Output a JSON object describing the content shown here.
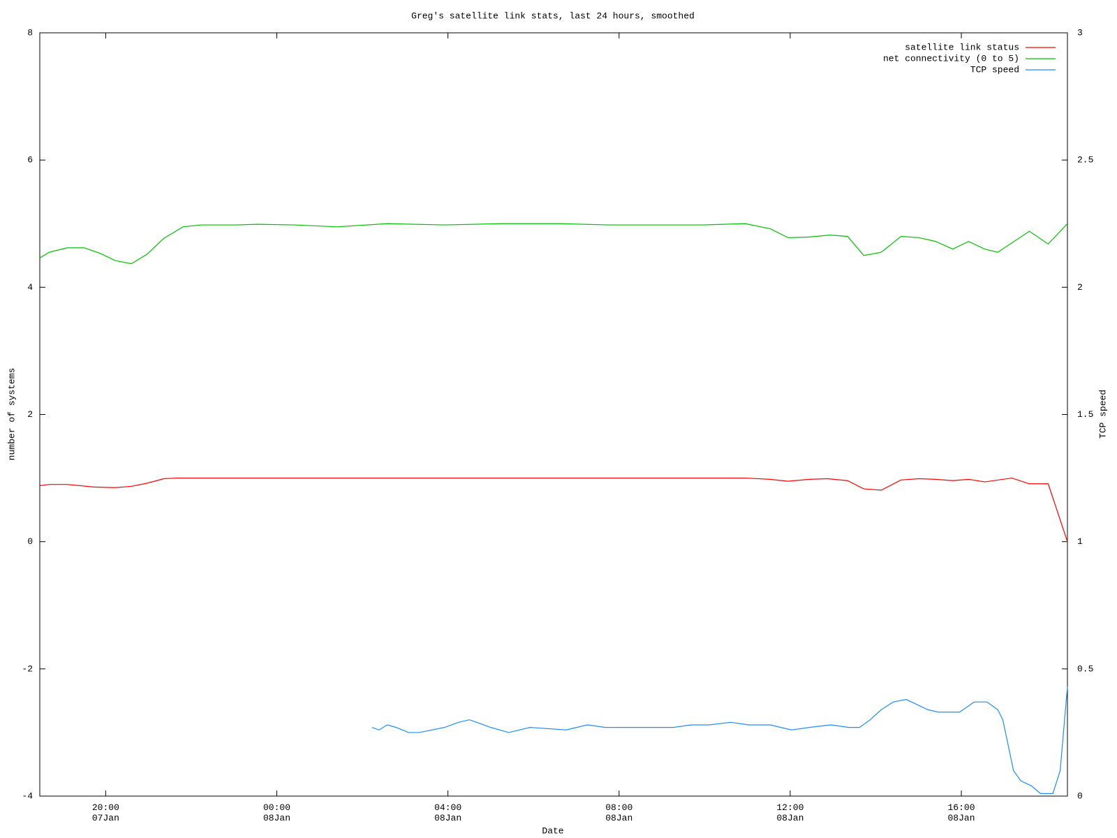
{
  "chart_data": {
    "type": "line",
    "title": "Greg's satellite link stats, last 24 hours, smoothed",
    "xlabel": "Date",
    "ylabel": "number of systems",
    "y2label": "TCP speed",
    "legend": "top-right",
    "xlim": [
      -5.54,
      18.48
    ],
    "xticks": [
      {
        "value": -4,
        "label": "20:00\n07Jan"
      },
      {
        "value": 0,
        "label": "00:00\n08Jan"
      },
      {
        "value": 4,
        "label": "04:00\n08Jan"
      },
      {
        "value": 8,
        "label": "08:00\n08Jan"
      },
      {
        "value": 12,
        "label": "12:00\n08Jan"
      },
      {
        "value": 16,
        "label": "16:00\n08Jan"
      }
    ],
    "ylim": [
      -4,
      8
    ],
    "yticks": [
      -4,
      -2,
      0,
      2,
      4,
      6,
      8
    ],
    "y2lim": [
      0,
      3
    ],
    "y2ticks": [
      0,
      0.5,
      1,
      1.5,
      2,
      2.5,
      3
    ],
    "series": [
      {
        "name": "satellite link status",
        "color": "#ff0000",
        "x": [
          -5.54,
          -5.32,
          -4.9,
          -4.28,
          -3.78,
          -3.4,
          -3.03,
          -2.64,
          -2.36,
          10.95,
          11.53,
          11.95,
          12.45,
          12.87,
          13.34,
          13.72,
          14.13,
          14.59,
          15.01,
          15.4,
          15.8,
          16.17,
          16.55,
          17.18,
          17.59,
          18.03,
          18.48
        ],
        "values": [
          0.88,
          0.9,
          0.9,
          0.86,
          0.85,
          0.87,
          0.92,
          0.99,
          1.0,
          1.0,
          0.98,
          0.95,
          0.98,
          0.99,
          0.96,
          0.83,
          0.81,
          0.97,
          0.99,
          0.98,
          0.96,
          0.98,
          0.94,
          1.0,
          0.91,
          0.91,
          0.0
        ]
      },
      {
        "name": "net connectivity (0 to 5)",
        "color": "#00c000",
        "x": [
          -5.54,
          -5.32,
          -4.9,
          -4.5,
          -4.12,
          -3.78,
          -3.4,
          -3.03,
          -2.64,
          -2.19,
          -1.77,
          -0.94,
          -0.44,
          0.4,
          1.41,
          2.58,
          3.92,
          5.26,
          6.59,
          7.77,
          9.94,
          10.95,
          11.53,
          11.95,
          12.45,
          12.92,
          13.34,
          13.72,
          14.13,
          14.59,
          15.01,
          15.4,
          15.8,
          16.17,
          16.55,
          16.85,
          17.59,
          18.03,
          18.48
        ],
        "values": [
          4.46,
          4.55,
          4.62,
          4.62,
          4.53,
          4.42,
          4.37,
          4.52,
          4.77,
          4.95,
          4.98,
          4.98,
          4.99,
          4.98,
          4.95,
          5.0,
          4.98,
          5.0,
          5.0,
          4.98,
          4.98,
          5.0,
          4.92,
          4.78,
          4.79,
          4.82,
          4.8,
          4.5,
          4.55,
          4.8,
          4.78,
          4.72,
          4.6,
          4.72,
          4.6,
          4.55,
          4.88,
          4.68,
          5.0
        ]
      },
      {
        "name": "TCP speed",
        "color": "#1e8cff",
        "axis": "y2",
        "x": [
          2.23,
          2.39,
          2.58,
          2.79,
          3.08,
          3.33,
          3.92,
          4.25,
          4.5,
          4.67,
          5.0,
          5.42,
          5.92,
          6.76,
          7.26,
          7.68,
          8.6,
          9.27,
          9.69,
          10.11,
          10.61,
          11.03,
          11.53,
          12.03,
          12.45,
          12.95,
          13.37,
          13.62,
          13.87,
          14.13,
          14.41,
          14.71,
          14.96,
          15.21,
          15.46,
          15.8,
          15.96,
          16.13,
          16.3,
          16.6,
          16.85,
          16.97,
          17.22,
          17.39,
          17.64,
          17.85,
          18.14,
          18.31,
          18.48
        ],
        "values": [
          0.27,
          0.26,
          0.28,
          0.27,
          0.25,
          0.25,
          0.27,
          0.29,
          0.3,
          0.29,
          0.27,
          0.25,
          0.27,
          0.26,
          0.28,
          0.27,
          0.27,
          0.27,
          0.28,
          0.28,
          0.29,
          0.28,
          0.28,
          0.26,
          0.27,
          0.28,
          0.27,
          0.27,
          0.3,
          0.34,
          0.37,
          0.38,
          0.36,
          0.34,
          0.33,
          0.33,
          0.33,
          0.35,
          0.37,
          0.37,
          0.34,
          0.3,
          0.1,
          0.06,
          0.04,
          0.01,
          0.01,
          0.1,
          0.43
        ]
      }
    ]
  }
}
